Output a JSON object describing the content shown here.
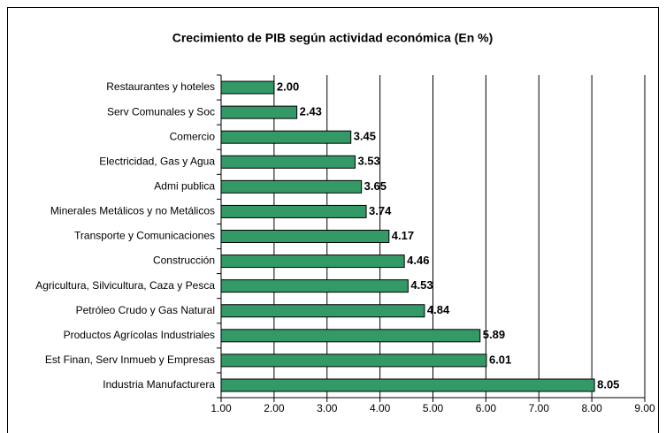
{
  "chart_data": {
    "type": "bar",
    "orientation": "horizontal",
    "title": "Crecimiento de PIB según actividad económica (En %)",
    "categories": [
      "Restaurantes y hoteles",
      "Serv Comunales y Soc",
      "Comercio",
      "Electricidad, Gas y Agua",
      "Admi publica",
      "Minerales Metálicos y no Metálicos",
      "Transporte y Comunicaciones",
      "Construcción",
      "Agricultura, Silvicultura, Caza y Pesca",
      "Petróleo Crudo y Gas Natural",
      "Productos Agrícolas Industriales",
      "Est Finan, Serv Inmueb y Empresas",
      "Industria Manufacturera"
    ],
    "values": [
      2.0,
      2.43,
      3.45,
      3.53,
      3.65,
      3.74,
      4.17,
      4.46,
      4.53,
      4.84,
      5.89,
      6.01,
      8.05
    ],
    "value_labels": [
      "2.00",
      "2.43",
      "3.45",
      "3.53",
      "3.65",
      "3.74",
      "4.17",
      "4.46",
      "4.53",
      "4.84",
      "5.89",
      "6.01",
      "8.05"
    ],
    "color": "#339966",
    "xlim": [
      1,
      9
    ],
    "xticks": [
      {
        "value": 1,
        "label": "1.00"
      },
      {
        "value": 2,
        "label": "2.00"
      },
      {
        "value": 3,
        "label": "3.00"
      },
      {
        "value": 4,
        "label": "4.00"
      },
      {
        "value": 5,
        "label": "5.00"
      },
      {
        "value": 6,
        "label": "6.00"
      },
      {
        "value": 7,
        "label": "7.00"
      },
      {
        "value": 8,
        "label": "8.00"
      },
      {
        "value": 9,
        "label": "9.00"
      }
    ],
    "grid": true
  }
}
